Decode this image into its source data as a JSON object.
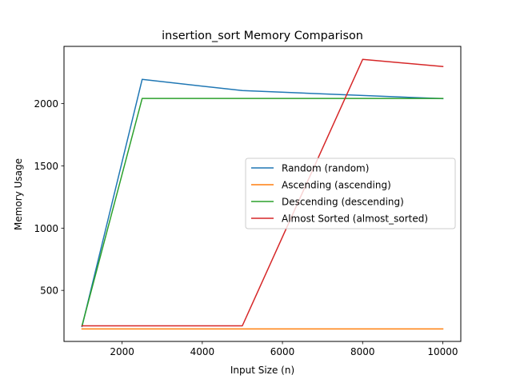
{
  "chart_data": {
    "type": "line",
    "title": "insertion_sort Memory Comparison",
    "xlabel": "Input Size (n)",
    "ylabel": "Memory Usage",
    "xlim": [
      550,
      10450
    ],
    "ylim": [
      90,
      2460
    ],
    "x_ticks": [
      2000,
      4000,
      6000,
      8000,
      10000
    ],
    "y_ticks": [
      500,
      1000,
      1500,
      2000
    ],
    "grid": false,
    "legend_position": "center-right",
    "series": [
      {
        "name": "Random (random)",
        "color": "#1f77b4",
        "x": [
          1000,
          2500,
          5000,
          10000
        ],
        "y": [
          210,
          2195,
          2105,
          2040
        ]
      },
      {
        "name": "Ascending (ascending)",
        "color": "#ff7f0e",
        "x": [
          1000,
          2500,
          5000,
          10000
        ],
        "y": [
          190,
          190,
          190,
          190
        ]
      },
      {
        "name": "Descending (descending)",
        "color": "#2ca02c",
        "x": [
          1000,
          2500,
          5000,
          10000
        ],
        "y": [
          215,
          2042,
          2042,
          2042
        ]
      },
      {
        "name": "Almost Sorted (almost_sorted)",
        "color": "#d62728",
        "x": [
          1000,
          5000,
          8000,
          10000
        ],
        "y": [
          215,
          215,
          2355,
          2298
        ]
      }
    ]
  }
}
